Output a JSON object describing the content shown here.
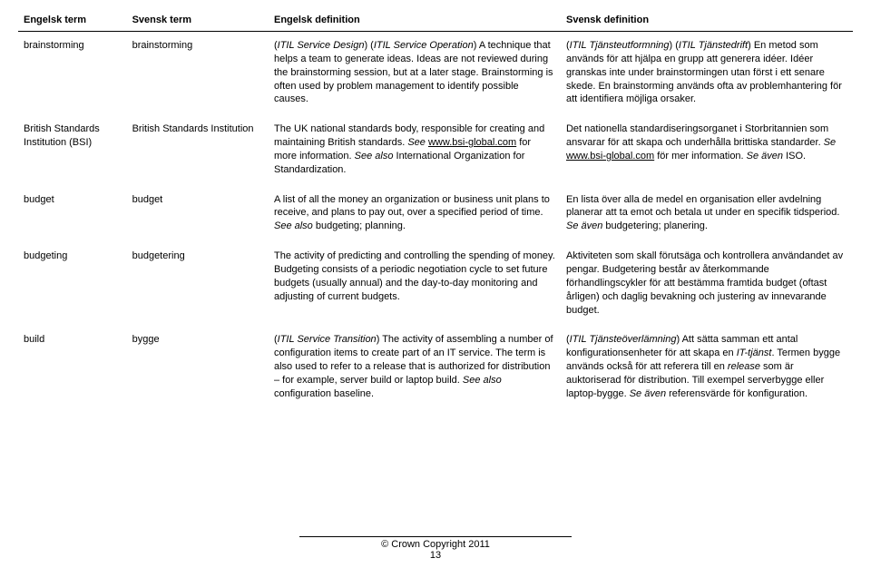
{
  "headers": {
    "col1": "Engelsk term",
    "col2": "Svensk term",
    "col3": "Engelsk definition",
    "col4": "Svensk definition"
  },
  "rows": [
    {
      "en_term": "brainstorming",
      "sv_term": "brainstorming",
      "en_def": "(<i>ITIL Service Design</i>) (<i>ITIL Service Operation</i>) A technique that helps a team to generate ideas. Ideas are not reviewed during the brainstorming session, but at a later stage. Brainstorming is often used by problem management to identify possible causes.",
      "sv_def": "(<i>ITIL Tjänsteutformning</i>) (<i>ITIL Tjänstedrift</i>) En metod som används för att hjälpa en grupp att generera idéer. Idéer granskas inte under brainstormingen utan först i ett senare skede. En brainstorming används ofta av problemhantering för att identifiera möjliga orsaker."
    },
    {
      "en_term": "British Standards Institution (BSI)",
      "sv_term": "British Standards Institution",
      "en_def": "The UK national standards body, responsible for creating and maintaining British standards. <i>See</i> <u>www.bsi-global.com</u> for more information. <i>See also</i> International Organization for Standardization.",
      "sv_def": "Det nationella standardiseringsorganet i Storbritannien som ansvarar för att skapa och underhålla brittiska standarder. <i>Se</i> <u>www.bsi-global.com</u> för mer information. <i>Se även</i> ISO."
    },
    {
      "en_term": "budget",
      "sv_term": "budget",
      "en_def": "A list of all the money an organization or business unit plans to receive, and plans to pay out, over a specified period of time. <i>See also</i> budgeting; planning.",
      "sv_def": "En lista över alla de medel en organisation eller avdelning planerar att ta emot och betala ut under en specifik tidsperiod. <i>Se även</i> budgetering; planering."
    },
    {
      "en_term": "budgeting",
      "sv_term": "budgetering",
      "en_def": "The activity of predicting and controlling the spending of money. Budgeting consists of a periodic negotiation cycle to set future budgets (usually annual) and the day-to-day monitoring and adjusting of current budgets.",
      "sv_def": "Aktiviteten som skall förutsäga och kontrollera användandet av pengar. Budgetering består av återkommande förhandlingscykler för att bestämma framtida budget (oftast årligen) och daglig bevakning och justering av innevarande budget."
    },
    {
      "en_term": "build",
      "sv_term": "bygge",
      "en_def": "(<i>ITIL Service Transition</i>) The activity of assembling a number of configuration items to create part of an IT service. The term is also used to refer to a release that is authorized for distribution – for example, server build or laptop build. <i>See also</i> configuration baseline.",
      "sv_def": "(<i>ITIL Tjänsteöverlämning</i>) Att sätta samman ett antal konfigurationsenheter för att skapa en <i>IT-tjänst</i>. Termen bygge används också för att referera till en <i>release</i> som är auktoriserad för distribution. Till exempel serverbygge eller laptop-bygge. <i>Se även</i> referensvärde för konfiguration."
    }
  ],
  "footer": {
    "copyright": "© Crown Copyright 2011",
    "page": "13"
  }
}
